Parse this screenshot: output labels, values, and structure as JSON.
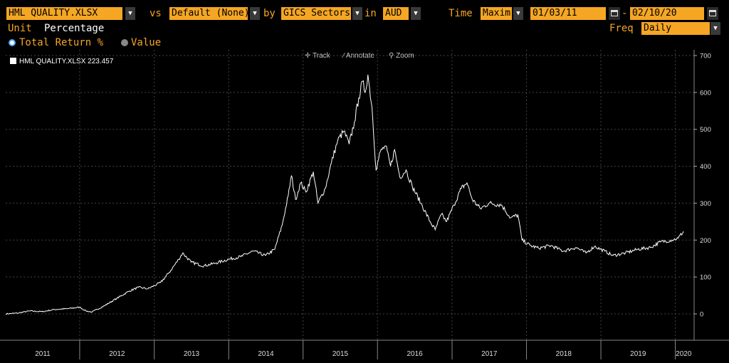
{
  "toolbar": {
    "security": "HML QUALITY.XLSX",
    "vs_label": "vs",
    "benchmark": "Default (None)",
    "by_label": "by",
    "group": "GICS Sectors",
    "in_label": "in",
    "currency": "AUD",
    "time_label": "Time",
    "time_period": "Maxim",
    "start_date": "01/03/11",
    "date_separator": "-",
    "end_date": "02/10/20"
  },
  "settings": {
    "unit_label": "Unit",
    "unit_value": "Percentage",
    "freq_label": "Freq",
    "freq_value": "Daily"
  },
  "mode": {
    "option_total_return": "Total Return %",
    "option_value": "Value",
    "selected": "Total Return %"
  },
  "chart_tools": {
    "track": "Track",
    "annotate": "Annotate",
    "zoom": "Zoom"
  },
  "legend": {
    "series_name": "HML QUALITY.XLSX",
    "last_value": "223.457"
  },
  "colors": {
    "accent": "#f5a623",
    "line": "#ffffff",
    "background": "#000000"
  },
  "chart_data": {
    "type": "line",
    "title": "",
    "xlabel": "",
    "ylabel": "",
    "ylim": [
      -60,
      710
    ],
    "xlim": [
      "2011-01-03",
      "2020-02-10"
    ],
    "y_ticks": [
      0,
      100,
      200,
      300,
      400,
      500,
      600,
      700
    ],
    "x_tick_labels": [
      "2011",
      "2012",
      "2013",
      "2014",
      "2015",
      "2016",
      "2017",
      "2018",
      "2019",
      "2020"
    ],
    "grid": true,
    "legend_position": "top-left",
    "series": [
      {
        "name": "HML QUALITY.XLSX",
        "points": [
          [
            "2011-01-03",
            0
          ],
          [
            "2011-03-01",
            2
          ],
          [
            "2011-05-01",
            8
          ],
          [
            "2011-07-01",
            6
          ],
          [
            "2011-09-01",
            12
          ],
          [
            "2011-11-01",
            14
          ],
          [
            "2012-01-01",
            18
          ],
          [
            "2012-02-01",
            8
          ],
          [
            "2012-03-01",
            5
          ],
          [
            "2012-05-01",
            22
          ],
          [
            "2012-07-01",
            42
          ],
          [
            "2012-09-01",
            62
          ],
          [
            "2012-10-15",
            72
          ],
          [
            "2012-12-01",
            68
          ],
          [
            "2013-02-01",
            85
          ],
          [
            "2013-03-15",
            112
          ],
          [
            "2013-05-01",
            148
          ],
          [
            "2013-05-20",
            165
          ],
          [
            "2013-07-01",
            140
          ],
          [
            "2013-09-01",
            130
          ],
          [
            "2013-11-01",
            138
          ],
          [
            "2014-01-01",
            148
          ],
          [
            "2014-03-01",
            155
          ],
          [
            "2014-05-01",
            170
          ],
          [
            "2014-07-01",
            158
          ],
          [
            "2014-08-15",
            175
          ],
          [
            "2014-09-20",
            240
          ],
          [
            "2014-10-20",
            320
          ],
          [
            "2014-11-05",
            375
          ],
          [
            "2014-11-25",
            310
          ],
          [
            "2014-12-20",
            355
          ],
          [
            "2015-01-15",
            330
          ],
          [
            "2015-02-20",
            385
          ],
          [
            "2015-03-15",
            300
          ],
          [
            "2015-04-20",
            340
          ],
          [
            "2015-05-20",
            410
          ],
          [
            "2015-06-20",
            470
          ],
          [
            "2015-07-20",
            495
          ],
          [
            "2015-08-15",
            460
          ],
          [
            "2015-09-10",
            520
          ],
          [
            "2015-10-01",
            585
          ],
          [
            "2015-10-20",
            630
          ],
          [
            "2015-11-01",
            600
          ],
          [
            "2015-11-15",
            648
          ],
          [
            "2015-12-05",
            560
          ],
          [
            "2015-12-25",
            390
          ],
          [
            "2016-01-15",
            440
          ],
          [
            "2016-02-10",
            455
          ],
          [
            "2016-03-05",
            400
          ],
          [
            "2016-03-25",
            445
          ],
          [
            "2016-04-20",
            370
          ],
          [
            "2016-05-20",
            390
          ],
          [
            "2016-06-20",
            345
          ],
          [
            "2016-08-01",
            300
          ],
          [
            "2016-09-15",
            250
          ],
          [
            "2016-10-10",
            228
          ],
          [
            "2016-11-10",
            270
          ],
          [
            "2016-12-05",
            250
          ],
          [
            "2017-01-10",
            295
          ],
          [
            "2017-02-15",
            340
          ],
          [
            "2017-03-15",
            355
          ],
          [
            "2017-04-10",
            310
          ],
          [
            "2017-05-20",
            285
          ],
          [
            "2017-07-01",
            300
          ],
          [
            "2017-09-01",
            295
          ],
          [
            "2017-10-15",
            260
          ],
          [
            "2017-11-20",
            268
          ],
          [
            "2017-12-10",
            200
          ],
          [
            "2018-01-20",
            185
          ],
          [
            "2018-03-01",
            178
          ],
          [
            "2018-05-01",
            185
          ],
          [
            "2018-07-01",
            170
          ],
          [
            "2018-09-01",
            180
          ],
          [
            "2018-10-20",
            165
          ],
          [
            "2018-12-01",
            183
          ],
          [
            "2019-01-20",
            170
          ],
          [
            "2019-03-01",
            158
          ],
          [
            "2019-05-01",
            165
          ],
          [
            "2019-07-01",
            175
          ],
          [
            "2019-09-01",
            180
          ],
          [
            "2019-10-20",
            195
          ],
          [
            "2019-12-15",
            200
          ],
          [
            "2020-01-15",
            205
          ],
          [
            "2020-02-10",
            223.457
          ]
        ]
      }
    ]
  }
}
